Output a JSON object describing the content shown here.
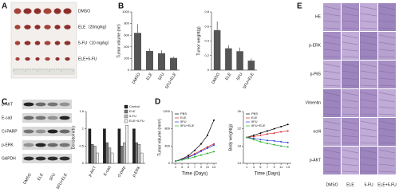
{
  "panel_labels": [
    "A",
    "B",
    "C",
    "D",
    "E"
  ],
  "panel_a": {
    "groups": [
      "DMSO",
      "ELE（20mg/kg）",
      "5-FU（10 mg/kg）",
      "ELE+5-FU"
    ]
  },
  "panel_c_blot": {
    "rows": [
      "p-AKT",
      "E-cad",
      "Cl-PARP",
      "p-ERK",
      "GAPDH"
    ],
    "columns": [
      "DMSO",
      "ELE",
      "5FU",
      "5FU+ELE"
    ]
  },
  "panel_e": {
    "rows": [
      "HE",
      "p-ERK",
      "p-P65",
      "Vimentin",
      "oct4",
      "p-AKT"
    ],
    "columns": [
      "DMSO",
      "ELE",
      "5-FU",
      "ELE+5-FU"
    ]
  },
  "chart_data": [
    {
      "type": "bar",
      "y_label": "Tumor volume (m³)",
      "categories": [
        "DMSO",
        "ELE",
        "5FU",
        "5FU+ELE"
      ],
      "values": [
        640,
        330,
        290,
        210
      ],
      "errors": [
        150,
        40,
        50,
        20
      ],
      "color": "#555555",
      "ylim": [
        0,
        1000
      ],
      "yticks": [
        0,
        200,
        400,
        600,
        800,
        1000
      ]
    },
    {
      "type": "bar",
      "y_label": "Tumor weight(g)",
      "categories": [
        "DMSO",
        "ELE",
        "5FU",
        "5FU+ELE"
      ],
      "values": [
        0.55,
        0.3,
        0.26,
        0.13
      ],
      "errors": [
        0.12,
        0.04,
        0.05,
        0.03
      ],
      "color": "#555555",
      "ylim": [
        0,
        0.8
      ],
      "yticks": [
        0,
        0.2,
        0.4,
        0.6,
        0.8
      ]
    },
    {
      "type": "grouped_bar",
      "y_label": "Densitometry",
      "categories": [
        "p-AKT",
        "E-cad",
        "cl-parp",
        "p-ERK"
      ],
      "series": [
        {
          "name": "Control",
          "color": "#222222",
          "values": [
            1,
            1,
            1,
            1
          ]
        },
        {
          "name": "ELE",
          "color": "#777777",
          "values": [
            0.55,
            0.6,
            0.5,
            0.6
          ]
        },
        {
          "name": "5-FU",
          "color": "#bbbbbb",
          "values": [
            0.5,
            0.45,
            0.6,
            0.55
          ]
        },
        {
          "name": "ELE+5-FU",
          "color": "#eeeeee",
          "values": [
            0.3,
            0.3,
            1.1,
            0.3
          ]
        }
      ],
      "ylim": [
        0,
        1.5
      ],
      "yticks": [
        0,
        0.5,
        1,
        1.5
      ],
      "legend": "top-right"
    },
    {
      "type": "line",
      "x_label": "Time (Days)",
      "y_label": "Tumor volume (mm³)",
      "x": [
        1,
        3,
        5,
        7,
        9,
        11,
        13
      ],
      "series": [
        {
          "name": "PBS",
          "color": "#000000",
          "values": [
            50,
            100,
            180,
            300,
            450,
            650,
            1000
          ]
        },
        {
          "name": "ELE",
          "color": "#e02020",
          "values": [
            50,
            90,
            150,
            220,
            300,
            380,
            450
          ]
        },
        {
          "name": "5FU",
          "color": "#2040e0",
          "values": [
            50,
            85,
            140,
            200,
            280,
            350,
            420
          ]
        },
        {
          "name": "5FU+ELE",
          "color": "#20b020",
          "values": [
            50,
            80,
            110,
            150,
            190,
            230,
            270
          ]
        }
      ],
      "xlim": [
        0,
        14
      ],
      "xticks": [
        1,
        3,
        5,
        7,
        9,
        11,
        13
      ],
      "ylim": [
        0,
        1200
      ],
      "yticks": [
        0,
        400,
        800,
        1200
      ],
      "legend": "top-left"
    },
    {
      "type": "line",
      "x_label": "Time (Days)",
      "y_label": "Body weight(g)",
      "x": [
        1,
        3,
        5,
        7,
        9,
        11,
        13
      ],
      "series": [
        {
          "name": "PBS",
          "color": "#000000",
          "values": [
            20,
            20.5,
            21,
            21.5,
            22,
            22.5,
            23
          ]
        },
        {
          "name": "ELE",
          "color": "#e02020",
          "values": [
            20,
            20.2,
            20.5,
            20.8,
            21,
            21.3,
            21.5
          ]
        },
        {
          "name": "5FU",
          "color": "#2040e0",
          "values": [
            20,
            19.8,
            19.5,
            19.3,
            19.2,
            19,
            18.8
          ]
        },
        {
          "name": "5FU+ELE",
          "color": "#20b020",
          "values": [
            20,
            19.5,
            19,
            18.6,
            18.3,
            18,
            17.8
          ]
        }
      ],
      "xlim": [
        0,
        14
      ],
      "xticks": [
        1,
        3,
        5,
        7,
        9,
        11,
        13
      ],
      "ylim": [
        14,
        26
      ],
      "yticks": [
        14,
        18,
        22,
        26
      ],
      "legend": "top-left"
    }
  ]
}
